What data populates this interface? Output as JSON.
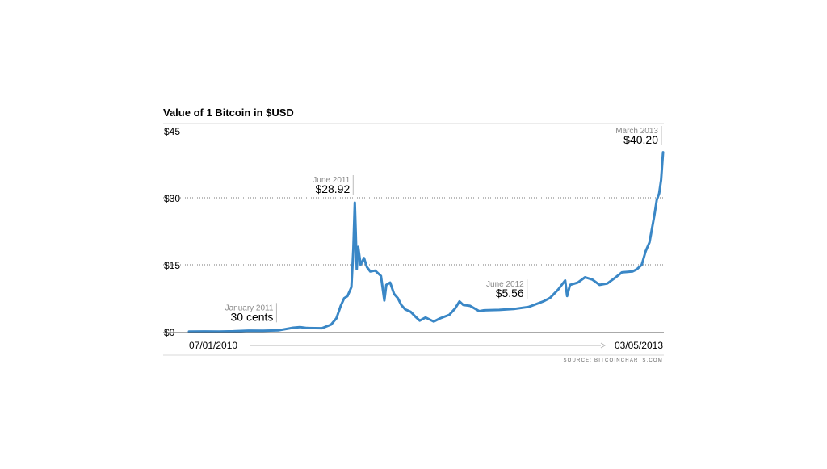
{
  "chart_data": {
    "type": "line",
    "title": "Value of 1 Bitcoin in $USD",
    "xlabel": "",
    "ylabel": "",
    "ylim": [
      0,
      45
    ],
    "yticks": [
      0,
      15,
      30,
      45
    ],
    "ytick_labels": [
      "$0",
      "$15",
      "$30",
      "$45"
    ],
    "grid": true,
    "x_start_label": "07/01/2010",
    "x_end_label": "03/05/2013",
    "source": "SOURCE: BITCOINCHARTS.COM",
    "line_color": "#3a87c6",
    "series": [
      {
        "values": [
          [
            "2010-07-01",
            0.06
          ],
          [
            "2010-08-01",
            0.07
          ],
          [
            "2010-09-01",
            0.06
          ],
          [
            "2010-10-01",
            0.1
          ],
          [
            "2010-11-01",
            0.25
          ],
          [
            "2010-12-01",
            0.22
          ],
          [
            "2011-01-01",
            0.3
          ],
          [
            "2011-02-01",
            0.9
          ],
          [
            "2011-02-15",
            1.05
          ],
          [
            "2011-03-01",
            0.85
          ],
          [
            "2011-04-01",
            0.8
          ],
          [
            "2011-04-20",
            1.6
          ],
          [
            "2011-05-01",
            3.0
          ],
          [
            "2011-05-10",
            5.8
          ],
          [
            "2011-05-17",
            7.5
          ],
          [
            "2011-05-24",
            8.0
          ],
          [
            "2011-06-01",
            10.0
          ],
          [
            "2011-06-05",
            18.5
          ],
          [
            "2011-06-08",
            28.92
          ],
          [
            "2011-06-10",
            22.0
          ],
          [
            "2011-06-12",
            14.0
          ],
          [
            "2011-06-15",
            19.0
          ],
          [
            "2011-06-20",
            15.0
          ],
          [
            "2011-06-27",
            16.5
          ],
          [
            "2011-07-03",
            14.5
          ],
          [
            "2011-07-10",
            13.5
          ],
          [
            "2011-07-20",
            13.7
          ],
          [
            "2011-08-01",
            12.5
          ],
          [
            "2011-08-08",
            7.0
          ],
          [
            "2011-08-12",
            10.5
          ],
          [
            "2011-08-20",
            11.0
          ],
          [
            "2011-08-28",
            8.5
          ],
          [
            "2011-09-05",
            7.5
          ],
          [
            "2011-09-12",
            6.0
          ],
          [
            "2011-09-20",
            5.0
          ],
          [
            "2011-10-01",
            4.5
          ],
          [
            "2011-10-10",
            3.5
          ],
          [
            "2011-10-20",
            2.5
          ],
          [
            "2011-11-01",
            3.2
          ],
          [
            "2011-11-18",
            2.3
          ],
          [
            "2011-12-01",
            3.0
          ],
          [
            "2011-12-20",
            3.8
          ],
          [
            "2012-01-01",
            5.2
          ],
          [
            "2012-01-10",
            6.8
          ],
          [
            "2012-01-18",
            6.0
          ],
          [
            "2012-02-01",
            5.8
          ],
          [
            "2012-02-20",
            4.6
          ],
          [
            "2012-03-01",
            4.8
          ],
          [
            "2012-04-01",
            4.9
          ],
          [
            "2012-05-01",
            5.1
          ],
          [
            "2012-06-01",
            5.56
          ],
          [
            "2012-07-01",
            6.8
          ],
          [
            "2012-07-15",
            7.6
          ],
          [
            "2012-08-01",
            9.5
          ],
          [
            "2012-08-15",
            11.5
          ],
          [
            "2012-08-19",
            8.0
          ],
          [
            "2012-08-25",
            10.5
          ],
          [
            "2012-09-10",
            11.0
          ],
          [
            "2012-09-25",
            12.2
          ],
          [
            "2012-10-10",
            11.7
          ],
          [
            "2012-10-25",
            10.5
          ],
          [
            "2012-11-10",
            10.8
          ],
          [
            "2012-11-25",
            12.0
          ],
          [
            "2012-12-10",
            13.3
          ],
          [
            "2013-01-01",
            13.5
          ],
          [
            "2013-01-10",
            14.0
          ],
          [
            "2013-01-20",
            15.0
          ],
          [
            "2013-01-28",
            18.0
          ],
          [
            "2013-02-05",
            20.0
          ],
          [
            "2013-02-10",
            23.0
          ],
          [
            "2013-02-15",
            26.0
          ],
          [
            "2013-02-20",
            29.5
          ],
          [
            "2013-02-25",
            31.0
          ],
          [
            "2013-03-01",
            34.0
          ],
          [
            "2013-03-05",
            40.2
          ]
        ]
      }
    ],
    "annotations": [
      {
        "date_label": "January 2011",
        "value_label": "30 cents",
        "x": "2011-01-01",
        "y": 0.3
      },
      {
        "date_label": "June 2011",
        "value_label": "$28.92",
        "x": "2011-06-08",
        "y": 28.92
      },
      {
        "date_label": "June 2012",
        "value_label": "$5.56",
        "x": "2012-06-01",
        "y": 5.56
      },
      {
        "date_label": "March 2013",
        "value_label": "$40.20",
        "x": "2013-03-05",
        "y": 40.2
      }
    ]
  }
}
